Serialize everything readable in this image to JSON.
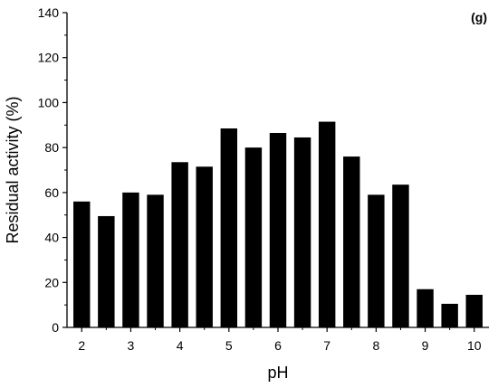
{
  "chart_data": {
    "type": "bar",
    "panel_label": "(g)",
    "xlabel": "pH",
    "ylabel": "Residual activity (%)",
    "xlim": [
      1.7,
      10.3
    ],
    "ylim": [
      0,
      140
    ],
    "x_ticks": [
      2,
      3,
      4,
      5,
      6,
      7,
      8,
      9,
      10
    ],
    "y_ticks": [
      0,
      20,
      40,
      60,
      80,
      100,
      120,
      140
    ],
    "bar_width": 0.34,
    "x": [
      2,
      2.5,
      3,
      3.5,
      4,
      4.5,
      5,
      5.5,
      6,
      6.5,
      7,
      7.5,
      8,
      8.5,
      9,
      9.5,
      10
    ],
    "values": [
      56,
      49.5,
      60,
      59,
      73.5,
      71.5,
      88.5,
      80,
      86.5,
      84.5,
      91.5,
      76,
      59,
      63.5,
      17,
      10.5,
      14.5
    ],
    "bar_color": "#000000",
    "grid": false
  }
}
